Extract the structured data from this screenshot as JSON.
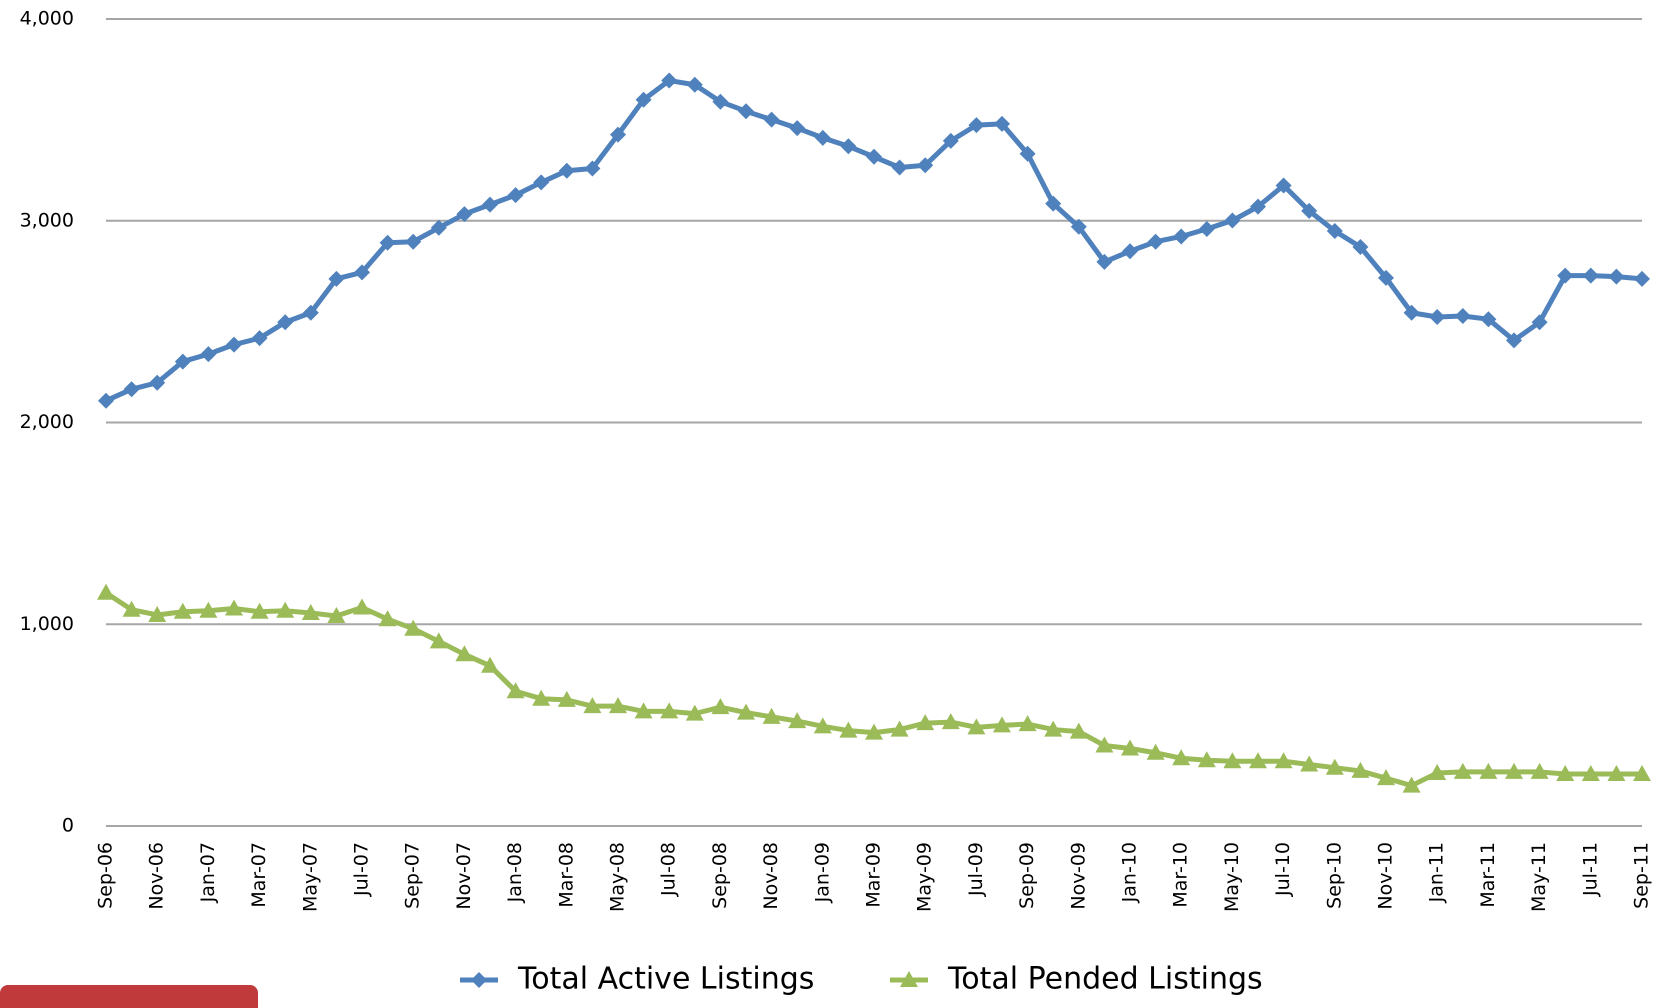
{
  "chart_data": {
    "type": "line",
    "categories": [
      "Sep-06",
      null,
      "Nov-06",
      null,
      "Jan-07",
      null,
      "Mar-07",
      null,
      "May-07",
      null,
      "Jul-07",
      null,
      "Sep-07",
      null,
      "Nov-07",
      null,
      "Jan-08",
      null,
      "Mar-08",
      null,
      "May-08",
      null,
      "Jul-08",
      null,
      "Sep-08",
      null,
      "Nov-08",
      null,
      "Jan-09",
      null,
      "Mar-09",
      null,
      "May-09",
      null,
      "Jul-09",
      null,
      "Sep-09",
      null,
      "Nov-09",
      null,
      "Jan-10",
      null,
      "Mar-10",
      null,
      "May-10",
      null,
      "Jul-10",
      null,
      "Sep-10",
      null,
      "Nov-10",
      null,
      "Jan-11",
      null,
      "Mar-11",
      null,
      "May-11",
      null,
      "Jul-11",
      null,
      "Sep-11"
    ],
    "series": [
      {
        "name": "Total Active Listings",
        "color": "#4f81bd",
        "marker": "diamond",
        "values": [
          2108,
          2165,
          2197,
          2302,
          2339,
          2386,
          2418,
          2497,
          2544,
          2712,
          2744,
          2891,
          2896,
          2965,
          3033,
          3080,
          3127,
          3190,
          3248,
          3259,
          3427,
          3600,
          3695,
          3674,
          3590,
          3543,
          3501,
          3459,
          3411,
          3369,
          3317,
          3264,
          3275,
          3396,
          3474,
          3480,
          3332,
          3085,
          2970,
          2796,
          2849,
          2896,
          2922,
          2959,
          3001,
          3070,
          3175,
          3049,
          2949,
          2870,
          2717,
          2544,
          2523,
          2528,
          2512,
          2407,
          2497,
          2728,
          2728,
          2723,
          2712
        ]
      },
      {
        "name": "Total Pended Listings",
        "color": "#9bbb59",
        "marker": "triangle",
        "values": [
          1156,
          1072,
          1046,
          1062,
          1067,
          1078,
          1062,
          1067,
          1056,
          1041,
          1083,
          1025,
          978,
          915,
          851,
          794,
          668,
          631,
          625,
          594,
          594,
          568,
          568,
          557,
          589,
          562,
          541,
          520,
          494,
          473,
          463,
          478,
          510,
          515,
          489,
          499,
          505,
          478,
          468,
          399,
          384,
          363,
          336,
          326,
          321,
          321,
          321,
          305,
          289,
          273,
          237,
          200,
          263,
          268,
          268,
          268,
          268,
          258,
          258,
          258,
          258
        ]
      }
    ],
    "ylim": [
      0,
      4000
    ],
    "yticks": [
      0,
      {
        "value": 1000,
        "label": "1,000"
      },
      {
        "value": 2000,
        "label": "2,000"
      },
      {
        "value": 3000,
        "label": "3,000"
      },
      {
        "value": 4000,
        "label": "4,000"
      }
    ],
    "grid": true,
    "legend": "bottom"
  }
}
